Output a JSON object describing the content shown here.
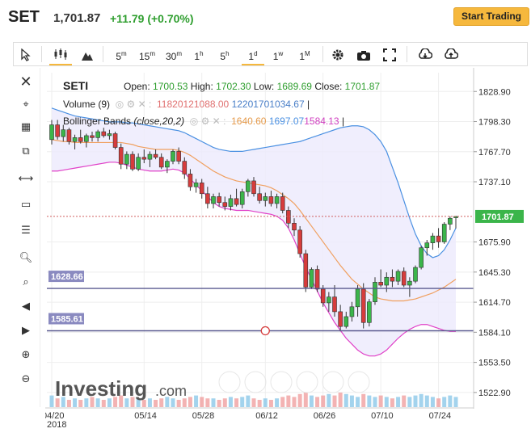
{
  "header": {
    "symbol": "SET",
    "price": "1,701.87",
    "change": "+11.79 (+0.70%)",
    "trade_button": "Start Trading"
  },
  "toolbar": {
    "timeframes": [
      "5m",
      "15m",
      "30m",
      "1h",
      "5h",
      "1d",
      "1w",
      "1M"
    ],
    "selected": "1d"
  },
  "legend": {
    "ticker": "SETI",
    "open_label": "Open:",
    "open": "1700.53",
    "high_label": "High:",
    "high": "1702.30",
    "low_label": "Low:",
    "low": "1689.69",
    "close_label": "Close:",
    "close": "1701.87",
    "volume_label": "Volume (9)",
    "volume_val1": "11820121088.00",
    "volume_val2": "12201701034.67",
    "bb_label": "Bollinger Bands",
    "bb_params": "(close,20,2)",
    "bb_val1": "1640.60",
    "bb_val2": "1697.07",
    "bb_val3": "1584.13"
  },
  "hlines": [
    {
      "value": 1628.66,
      "label": "1628.66"
    },
    {
      "value": 1585.61,
      "label": "1585.61"
    }
  ],
  "last_price_label": "1701.87",
  "watermark": "Investing",
  "watermark_suffix": ".com",
  "colors": {
    "up": "#3bb54a",
    "down": "#d63c3c",
    "bb_upper": "#4a90e2",
    "bb_lower": "#e040c8",
    "bb_mid": "#f0a060",
    "bb_fill": "#eceafc",
    "hline": "#5a5a90",
    "last_price": "#3bb54a"
  },
  "chart_data": {
    "type": "candlestick",
    "yticks": [
      1828.9,
      1798.3,
      1767.7,
      1737.1,
      1675.9,
      1645.3,
      1614.7,
      1584.1,
      1553.5,
      1522.9
    ],
    "ylim": [
      1508,
      1848
    ],
    "xlabels": [
      {
        "label": "04/20",
        "i": 0
      },
      {
        "label": "05/14",
        "i": 16
      },
      {
        "label": "05/28",
        "i": 26
      },
      {
        "label": "06/12",
        "i": 37
      },
      {
        "label": "06/26",
        "i": 47
      },
      {
        "label": "07/10",
        "i": 57
      },
      {
        "label": "07/24",
        "i": 67
      }
    ],
    "year_label": "2018",
    "candles": [
      [
        1780,
        1800,
        1775,
        1795
      ],
      [
        1795,
        1800,
        1780,
        1783
      ],
      [
        1783,
        1795,
        1778,
        1790
      ],
      [
        1790,
        1792,
        1775,
        1778
      ],
      [
        1778,
        1785,
        1770,
        1782
      ],
      [
        1782,
        1790,
        1776,
        1778
      ],
      [
        1778,
        1786,
        1772,
        1784
      ],
      [
        1784,
        1788,
        1778,
        1782
      ],
      [
        1782,
        1790,
        1778,
        1788
      ],
      [
        1788,
        1792,
        1782,
        1784
      ],
      [
        1784,
        1790,
        1780,
        1786
      ],
      [
        1786,
        1788,
        1770,
        1772
      ],
      [
        1772,
        1776,
        1750,
        1755
      ],
      [
        1755,
        1768,
        1750,
        1765
      ],
      [
        1765,
        1768,
        1748,
        1750
      ],
      [
        1750,
        1766,
        1748,
        1762
      ],
      [
        1762,
        1770,
        1756,
        1760
      ],
      [
        1760,
        1768,
        1752,
        1765
      ],
      [
        1765,
        1770,
        1760,
        1762
      ],
      [
        1762,
        1766,
        1750,
        1752
      ],
      [
        1752,
        1760,
        1746,
        1758
      ],
      [
        1758,
        1770,
        1755,
        1768
      ],
      [
        1768,
        1772,
        1755,
        1758
      ],
      [
        1758,
        1762,
        1740,
        1745
      ],
      [
        1745,
        1750,
        1728,
        1732
      ],
      [
        1732,
        1740,
        1726,
        1736
      ],
      [
        1736,
        1740,
        1720,
        1725
      ],
      [
        1725,
        1732,
        1710,
        1715
      ],
      [
        1715,
        1725,
        1710,
        1722
      ],
      [
        1722,
        1726,
        1712,
        1716
      ],
      [
        1716,
        1722,
        1708,
        1712
      ],
      [
        1712,
        1724,
        1708,
        1720
      ],
      [
        1720,
        1730,
        1712,
        1714
      ],
      [
        1714,
        1730,
        1710,
        1727
      ],
      [
        1727,
        1740,
        1722,
        1738
      ],
      [
        1738,
        1742,
        1722,
        1725
      ],
      [
        1725,
        1732,
        1715,
        1718
      ],
      [
        1718,
        1726,
        1712,
        1722
      ],
      [
        1722,
        1728,
        1712,
        1715
      ],
      [
        1715,
        1725,
        1710,
        1722
      ],
      [
        1722,
        1726,
        1705,
        1708
      ],
      [
        1708,
        1712,
        1690,
        1695
      ],
      [
        1695,
        1700,
        1682,
        1688
      ],
      [
        1688,
        1692,
        1660,
        1664
      ],
      [
        1664,
        1668,
        1625,
        1630
      ],
      [
        1630,
        1650,
        1628,
        1648
      ],
      [
        1648,
        1652,
        1625,
        1628
      ],
      [
        1628,
        1632,
        1610,
        1614
      ],
      [
        1614,
        1625,
        1605,
        1620
      ],
      [
        1620,
        1632,
        1600,
        1605
      ],
      [
        1605,
        1612,
        1585,
        1590
      ],
      [
        1590,
        1605,
        1588,
        1600
      ],
      [
        1600,
        1615,
        1595,
        1610
      ],
      [
        1610,
        1632,
        1600,
        1628
      ],
      [
        1628,
        1634,
        1588,
        1594
      ],
      [
        1594,
        1618,
        1590,
        1615
      ],
      [
        1615,
        1640,
        1612,
        1635
      ],
      [
        1635,
        1648,
        1630,
        1632
      ],
      [
        1632,
        1645,
        1625,
        1640
      ],
      [
        1640,
        1648,
        1630,
        1636
      ],
      [
        1636,
        1648,
        1632,
        1646
      ],
      [
        1646,
        1650,
        1630,
        1632
      ],
      [
        1632,
        1640,
        1620,
        1636
      ],
      [
        1636,
        1652,
        1634,
        1650
      ],
      [
        1650,
        1672,
        1648,
        1670
      ],
      [
        1670,
        1678,
        1662,
        1675
      ],
      [
        1675,
        1685,
        1668,
        1682
      ],
      [
        1682,
        1690,
        1670,
        1676
      ],
      [
        1676,
        1696,
        1674,
        1694
      ],
      [
        1694,
        1702,
        1688,
        1700
      ],
      [
        1700.53,
        1702.3,
        1689.69,
        1701.87
      ]
    ],
    "bb_upper": [
      1812,
      1810,
      1808,
      1806,
      1804,
      1803,
      1802,
      1801,
      1800,
      1799,
      1798,
      1798,
      1798,
      1797,
      1797,
      1796,
      1795,
      1794,
      1793,
      1792,
      1791,
      1790,
      1789,
      1787,
      1784,
      1781,
      1778,
      1775,
      1772,
      1770,
      1769,
      1768,
      1768,
      1768,
      1769,
      1770,
      1771,
      1772,
      1773,
      1774,
      1775,
      1776,
      1777,
      1778,
      1780,
      1782,
      1784,
      1786,
      1788,
      1790,
      1792,
      1793,
      1794,
      1794,
      1793,
      1790,
      1785,
      1778,
      1768,
      1752,
      1736,
      1718,
      1700,
      1684,
      1672,
      1664,
      1660,
      1662,
      1668,
      1678,
      1690
    ],
    "bb_lower": [
      1748,
      1748,
      1749,
      1750,
      1751,
      1752,
      1753,
      1754,
      1755,
      1756,
      1757,
      1757,
      1756,
      1754,
      1752,
      1750,
      1749,
      1748,
      1748,
      1748,
      1749,
      1750,
      1749,
      1746,
      1740,
      1734,
      1728,
      1722,
      1716,
      1712,
      1710,
      1709,
      1708,
      1708,
      1708,
      1707,
      1706,
      1705,
      1704,
      1702,
      1698,
      1690,
      1678,
      1664,
      1650,
      1638,
      1626,
      1614,
      1604,
      1594,
      1586,
      1578,
      1572,
      1566,
      1562,
      1560,
      1560,
      1562,
      1566,
      1572,
      1578,
      1583,
      1587,
      1590,
      1592,
      1592,
      1590,
      1588,
      1586,
      1585,
      1585
    ],
    "bb_mid": [
      1780,
      1779,
      1778,
      1778,
      1777,
      1777,
      1777,
      1777,
      1777,
      1777,
      1777,
      1777,
      1777,
      1776,
      1775,
      1773,
      1772,
      1771,
      1770,
      1770,
      1770,
      1770,
      1769,
      1767,
      1764,
      1760,
      1756,
      1752,
      1748,
      1745,
      1742,
      1740,
      1738,
      1737,
      1736,
      1735,
      1734,
      1733,
      1731,
      1728,
      1724,
      1720,
      1715,
      1708,
      1700,
      1692,
      1684,
      1676,
      1668,
      1660,
      1652,
      1645,
      1638,
      1633,
      1628,
      1624,
      1620,
      1618,
      1617,
      1616,
      1616,
      1616,
      1617,
      1618,
      1620,
      1622,
      1624,
      1627,
      1630,
      1634,
      1638
    ],
    "volume": [
      8,
      6,
      7,
      5,
      6,
      5,
      6,
      7,
      6,
      5,
      6,
      7,
      8,
      6,
      7,
      6,
      5,
      6,
      5,
      6,
      7,
      6,
      5,
      6,
      7,
      8,
      7,
      6,
      6,
      5,
      6,
      7,
      6,
      7,
      8,
      6,
      5,
      6,
      5,
      6,
      7,
      8,
      7,
      9,
      10,
      8,
      7,
      8,
      9,
      8,
      10,
      9,
      8,
      7,
      9,
      8,
      7,
      8,
      7,
      6,
      7,
      8,
      7,
      8,
      9,
      8,
      7,
      6,
      7,
      8,
      7
    ]
  }
}
